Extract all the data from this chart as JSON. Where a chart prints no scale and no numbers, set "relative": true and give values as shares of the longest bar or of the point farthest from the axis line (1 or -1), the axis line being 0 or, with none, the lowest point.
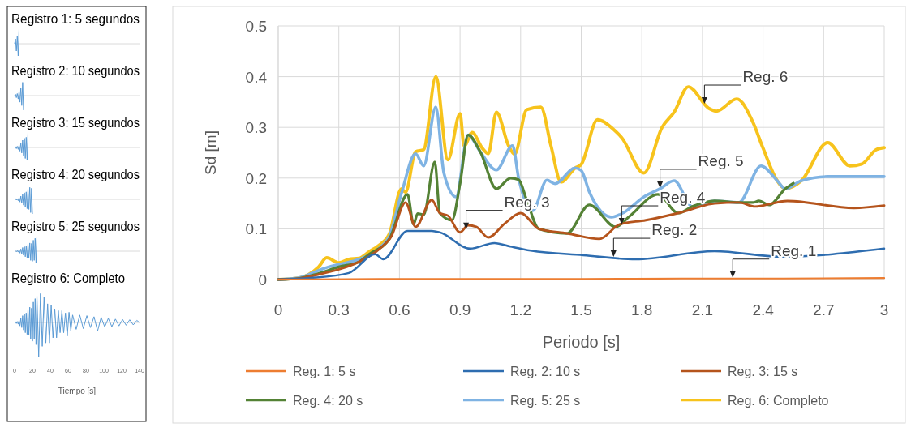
{
  "chart_data": [
    {
      "type": "line",
      "relative": true,
      "title": "Registro 1:  5  segundos",
      "xlim": [
        0,
        140
      ],
      "tick_labels": false,
      "color": "#5b9bd5",
      "x": [
        0,
        1,
        2,
        3,
        4,
        5
      ],
      "values": [
        0,
        0.33,
        -0.5,
        0.5,
        -0.83,
        1
      ]
    },
    {
      "type": "line",
      "relative": true,
      "title": "Registro 2: 10 segundos",
      "xlim": [
        0,
        140
      ],
      "tick_labels": false,
      "color": "#5b9bd5",
      "x": [
        0,
        1,
        2,
        3,
        4,
        5,
        6,
        7,
        8,
        9,
        10
      ],
      "values": [
        0,
        0.09,
        -0.14,
        0.14,
        -0.23,
        0.27,
        -0.45,
        0.55,
        -0.68,
        0.91,
        -1
      ]
    },
    {
      "type": "line",
      "relative": true,
      "title": "Registro 3: 15 segundos",
      "xlim": [
        0,
        140
      ],
      "tick_labels": false,
      "color": "#5b9bd5",
      "x": [
        0,
        1,
        2,
        3,
        4,
        5,
        6,
        7,
        8,
        9,
        10,
        11,
        12,
        13,
        14,
        15
      ],
      "values": [
        0,
        0.05,
        -0.08,
        0.08,
        -0.13,
        0.15,
        -0.25,
        0.3,
        -0.38,
        0.5,
        -0.55,
        0.63,
        -0.75,
        0.7,
        -0.88,
        1
      ]
    },
    {
      "type": "line",
      "relative": true,
      "title": "Registro 4: 20 segundos",
      "xlim": [
        0,
        140
      ],
      "tick_labels": false,
      "color": "#5b9bd5",
      "x": [
        0,
        1,
        2,
        3,
        4,
        5,
        6,
        7,
        8,
        9,
        10,
        11,
        12,
        13,
        14,
        15,
        16,
        17,
        18,
        19,
        20
      ],
      "values": [
        0,
        0.04,
        -0.05,
        0.05,
        -0.09,
        0.11,
        -0.18,
        0.22,
        -0.27,
        0.36,
        -0.4,
        0.45,
        -0.55,
        0.51,
        -0.64,
        0.73,
        -0.69,
        0.82,
        -0.91,
        0.76,
        -1
      ]
    },
    {
      "type": "line",
      "relative": true,
      "title": "Registro 5: 25 segundos",
      "xlim": [
        0,
        140
      ],
      "tick_labels": false,
      "color": "#5b9bd5",
      "x": [
        0,
        1,
        2,
        3,
        4,
        5,
        6,
        7,
        8,
        9,
        10,
        11,
        12,
        13,
        14,
        15,
        16,
        17,
        18,
        19,
        20,
        21,
        22,
        23,
        24,
        25
      ],
      "values": [
        0,
        0.03,
        -0.04,
        0.04,
        -0.06,
        0.08,
        -0.13,
        0.15,
        -0.19,
        0.25,
        -0.28,
        0.31,
        -0.38,
        0.35,
        -0.44,
        0.5,
        -0.48,
        0.56,
        -0.63,
        0.53,
        -0.69,
        0.75,
        -0.63,
        0.88,
        -0.81,
        1
      ]
    },
    {
      "type": "line",
      "relative": true,
      "title": "Registro 6: Completo",
      "xlabel": "Tiempo [s]",
      "xlim": [
        0,
        140
      ],
      "xticks": [
        0,
        20,
        40,
        60,
        80,
        100,
        120,
        140
      ],
      "tick_labels": "x",
      "color": "#5b9bd5",
      "x": [
        0,
        1,
        2,
        3,
        4,
        5,
        6,
        7,
        8,
        9,
        10,
        11,
        12,
        13,
        14,
        15,
        16,
        17,
        18,
        19,
        20,
        21,
        22,
        23,
        24,
        25,
        27,
        29,
        31,
        33,
        35,
        37,
        39,
        41,
        43,
        45,
        47,
        49,
        51,
        53,
        55,
        57,
        59,
        61,
        63,
        65,
        69,
        73,
        77,
        81,
        85,
        89,
        93,
        97,
        101,
        105,
        109,
        113,
        117,
        121,
        125,
        129,
        133,
        137,
        140
      ],
      "values": [
        0,
        0.02,
        -0.03,
        0.03,
        -0.05,
        0.06,
        -0.1,
        0.12,
        -0.15,
        0.2,
        -0.22,
        0.25,
        -0.3,
        0.28,
        -0.35,
        0.4,
        -0.38,
        0.45,
        -0.5,
        0.42,
        -0.55,
        0.6,
        -0.5,
        0.7,
        -0.65,
        0.8,
        -1,
        0.85,
        -0.7,
        0.75,
        -0.6,
        0.55,
        -0.6,
        0.5,
        -0.45,
        0.4,
        -0.45,
        0.35,
        -0.3,
        0.35,
        -0.3,
        0.28,
        -0.4,
        0.3,
        -0.25,
        0.22,
        -0.2,
        0.22,
        -0.18,
        0.2,
        -0.15,
        0.17,
        -0.25,
        0.15,
        -0.13,
        0.12,
        -0.12,
        0.1,
        -0.1,
        0.09,
        -0.08,
        0.08,
        -0.07,
        0.06,
        0
      ]
    },
    {
      "type": "line",
      "xlabel": "Periodo [s]",
      "ylabel": "Sd [m]",
      "xlim": [
        0,
        3
      ],
      "ylim": [
        0,
        0.5
      ],
      "xticks": [
        0,
        0.3,
        0.6,
        0.9,
        1.2,
        1.5,
        1.8,
        2.1,
        2.4,
        2.7,
        3
      ],
      "yticks": [
        0,
        0.1,
        0.2,
        0.3,
        0.4,
        0.5
      ],
      "grid": true,
      "legend": "bottom",
      "line_style": "solid",
      "series": [
        {
          "name": "Reg. 1: 5 s",
          "color": "#ed7d31",
          "x": [
            0,
            0.5,
            1,
            1.5,
            2,
            2.5,
            3
          ],
          "values": [
            0,
            0.001,
            0.001,
            0.001,
            0.002,
            0.002,
            0.003
          ]
        },
        {
          "name": "Reg. 2: 10 s",
          "color": "#2e6db0",
          "x": [
            0,
            0.16,
            0.35,
            0.48,
            0.52,
            0.64,
            0.76,
            0.8,
            0.95,
            1.07,
            1.15,
            1.25,
            1.51,
            1.77,
            2.16,
            2.49,
            3
          ],
          "values": [
            0,
            0.003,
            0.013,
            0.05,
            0.04,
            0.096,
            0.096,
            0.093,
            0.061,
            0.072,
            0.065,
            0.057,
            0.048,
            0.04,
            0.056,
            0.045,
            0.061
          ]
        },
        {
          "name": "Reg. 3: 15 s",
          "color": "#b5541c",
          "x": [
            0,
            0.1,
            0.2,
            0.3,
            0.4,
            0.5,
            0.56,
            0.63,
            0.68,
            0.76,
            0.8,
            0.84,
            0.9,
            0.94,
            0.98,
            1.04,
            1.12,
            1.2,
            1.29,
            1.43,
            1.59,
            1.69,
            1.82,
            1.98,
            2.16,
            2.28,
            2.36,
            2.52,
            2.85,
            3
          ],
          "values": [
            0,
            0.002,
            0.01,
            0.02,
            0.035,
            0.06,
            0.085,
            0.152,
            0.104,
            0.157,
            0.131,
            0.126,
            0.093,
            0.107,
            0.104,
            0.083,
            0.11,
            0.131,
            0.1,
            0.091,
            0.08,
            0.109,
            0.117,
            0.131,
            0.15,
            0.152,
            0.144,
            0.155,
            0.141,
            0.146
          ]
        },
        {
          "name": "Reg. 4: 20 s",
          "color": "#548235",
          "x": [
            0,
            0.1,
            0.2,
            0.3,
            0.4,
            0.45,
            0.55,
            0.64,
            0.67,
            0.69,
            0.72,
            0.775,
            0.8,
            0.86,
            0.9,
            0.94,
            1,
            1.08,
            1.15,
            1.19,
            1.23,
            1.29,
            1.43,
            1.54,
            1.67,
            1.74,
            1.88,
            1.98,
            2.05,
            2.16,
            2.28,
            2.35,
            2.38,
            2.43,
            2.51,
            2.55
          ],
          "values": [
            0,
            0.002,
            0.012,
            0.025,
            0.035,
            0.05,
            0.08,
            0.168,
            0.109,
            0.13,
            0.128,
            0.232,
            0.131,
            0.117,
            0.189,
            0.285,
            0.252,
            0.179,
            0.2,
            0.197,
            0.157,
            0.1,
            0.091,
            0.147,
            0.104,
            0.125,
            0.168,
            0.131,
            0.144,
            0.155,
            0.152,
            0.152,
            0.155,
            0.147,
            0.179,
            0.19
          ]
        },
        {
          "name": "Reg. 5: 25 s",
          "color": "#7fb3e3",
          "x": [
            0,
            0.1,
            0.2,
            0.25,
            0.3,
            0.4,
            0.5,
            0.55,
            0.61,
            0.68,
            0.72,
            0.78,
            0.82,
            0.88,
            0.94,
            1,
            1.08,
            1.16,
            1.19,
            1.26,
            1.33,
            1.37,
            1.47,
            1.5,
            1.54,
            1.65,
            1.71,
            1.81,
            1.89,
            1.96,
            2.05,
            2.16,
            2.28,
            2.39,
            2.47,
            2.51,
            2.59,
            2.72,
            3
          ],
          "values": [
            0,
            0.003,
            0.018,
            0.025,
            0.03,
            0.04,
            0.062,
            0.085,
            0.17,
            0.248,
            0.224,
            0.34,
            0.21,
            0.163,
            0.285,
            0.252,
            0.216,
            0.264,
            0.2,
            0.136,
            0.196,
            0.189,
            0.22,
            0.215,
            0.173,
            0.123,
            0.132,
            0.163,
            0.179,
            0.195,
            0.144,
            0.155,
            0.152,
            0.224,
            0.195,
            0.179,
            0.195,
            0.203,
            0.203
          ]
        },
        {
          "name": "Reg. 6: Completo",
          "color": "#f7c31c",
          "x": [
            0,
            0.1,
            0.2,
            0.24,
            0.3,
            0.35,
            0.4,
            0.45,
            0.5,
            0.55,
            0.61,
            0.63,
            0.68,
            0.72,
            0.78,
            0.84,
            0.9,
            0.92,
            0.96,
            1.01,
            1.04,
            1.08,
            1.14,
            1.17,
            1.23,
            1.3,
            1.35,
            1.4,
            1.47,
            1.5,
            1.58,
            1.66,
            1.7,
            1.81,
            1.9,
            1.96,
            2.03,
            2.13,
            2.17,
            2.27,
            2.35,
            2.4,
            2.47,
            2.51,
            2.59,
            2.72,
            2.83,
            2.89,
            2.96,
            3
          ],
          "values": [
            0,
            0.003,
            0.025,
            0.043,
            0.033,
            0.04,
            0.042,
            0.055,
            0.068,
            0.09,
            0.179,
            0.172,
            0.252,
            0.256,
            0.4,
            0.236,
            0.327,
            0.263,
            0.29,
            0.259,
            0.248,
            0.33,
            0.264,
            0.247,
            0.335,
            0.34,
            0.264,
            0.192,
            0.22,
            0.227,
            0.315,
            0.296,
            0.28,
            0.21,
            0.3,
            0.33,
            0.38,
            0.338,
            0.332,
            0.356,
            0.31,
            0.259,
            0.195,
            0.179,
            0.195,
            0.27,
            0.224,
            0.228,
            0.256,
            0.26
          ]
        }
      ],
      "annotations": [
        {
          "text": "Reg. 6",
          "x": 2.11,
          "y": 0.345
        },
        {
          "text": "Reg. 5",
          "x": 1.89,
          "y": 0.179
        },
        {
          "text": "Reg. 3",
          "x": 0.93,
          "y": 0.098
        },
        {
          "text": "Reg. 4",
          "x": 1.7,
          "y": 0.107
        },
        {
          "text": "Reg. 2",
          "x": 1.66,
          "y": 0.043
        },
        {
          "text": "Reg. 1",
          "x": 2.25,
          "y": 0.002
        }
      ]
    }
  ]
}
